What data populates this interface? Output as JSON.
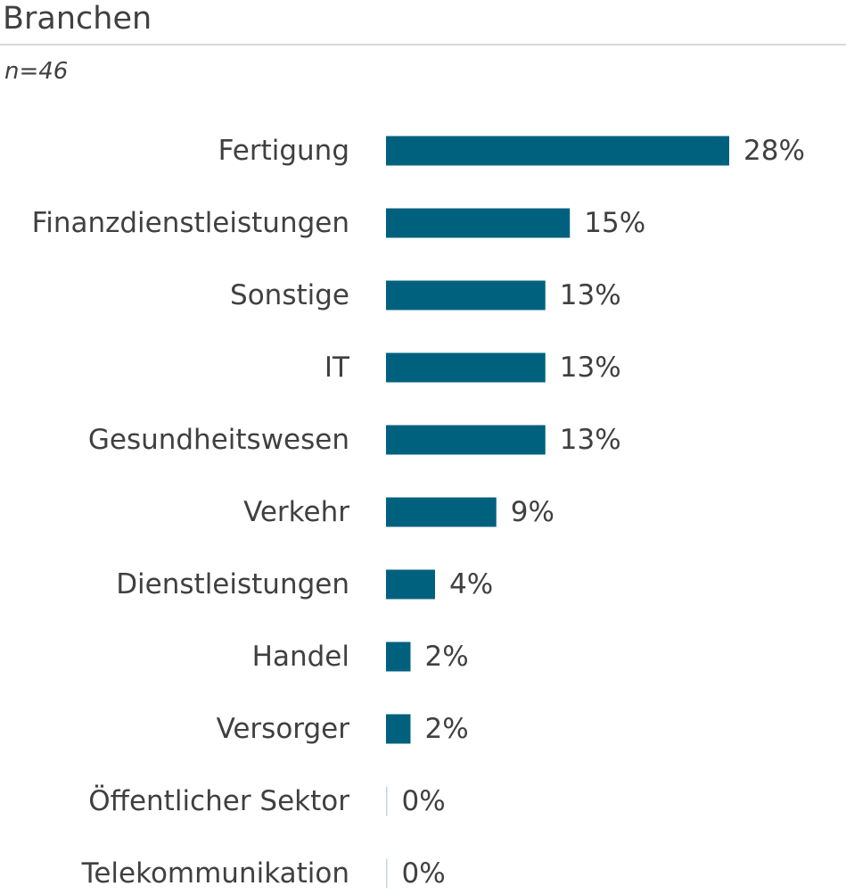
{
  "header": {
    "title": "Branchen",
    "subtitle": "n=46"
  },
  "colors": {
    "bar": "#00617f",
    "zero_bar": "#c5d6de",
    "text": "#404040",
    "rule": "#d9d9d9"
  },
  "chart_data": {
    "type": "bar",
    "orientation": "horizontal",
    "title": "Branchen",
    "subtitle": "n=46",
    "xlabel": "",
    "ylabel": "",
    "grid": false,
    "legend": "none",
    "xlim": [
      0,
      28
    ],
    "value_suffix": "%",
    "categories": [
      "Fertigung",
      "Finanzdienstleistungen",
      "Sonstige",
      "IT",
      "Gesundheitswesen",
      "Verkehr",
      "Dienstleistungen",
      "Handel",
      "Versorger",
      "Öffentlicher Sektor",
      "Telekommunikation"
    ],
    "values": [
      28,
      15,
      13,
      13,
      13,
      9,
      4,
      2,
      2,
      0,
      0
    ],
    "value_labels": [
      "28%",
      "15%",
      "13%",
      "13%",
      "13%",
      "9%",
      "4%",
      "2%",
      "2%",
      "0%",
      "0%"
    ]
  }
}
